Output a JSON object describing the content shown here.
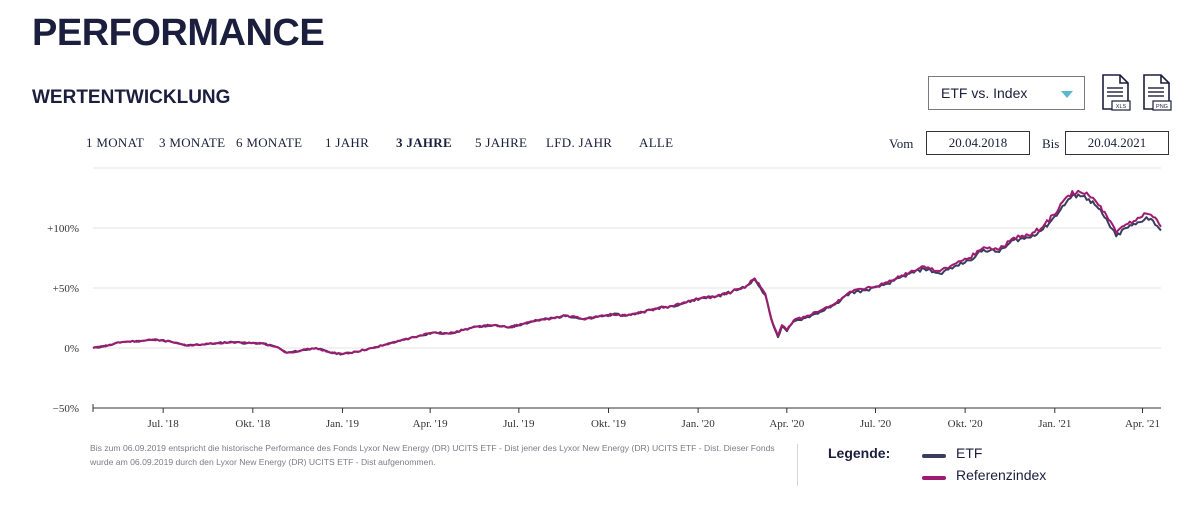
{
  "header": {
    "title": "PERFORMANCE",
    "subtitle": "WERTENTWICKLUNG"
  },
  "comparison_select": {
    "value": "ETF vs. Index"
  },
  "downloads": {
    "xls_label": "XLS",
    "png_label": "PNG"
  },
  "ranges": [
    {
      "label": "1 MONAT",
      "active": false
    },
    {
      "label": "3 MONATE",
      "active": false
    },
    {
      "label": "6 MONATE",
      "active": false
    },
    {
      "label": "1 JAHR",
      "active": false
    },
    {
      "label": "3 JAHRE",
      "active": true
    },
    {
      "label": "5 JAHRE",
      "active": false
    },
    {
      "label": "LFD. JAHR",
      "active": false
    },
    {
      "label": "ALLE",
      "active": false
    }
  ],
  "date_range": {
    "from_label": "Vom",
    "from": "20.04.2018",
    "to_label": "Bis",
    "to": "20.04.2021"
  },
  "chart_data": {
    "type": "line",
    "y_unit": "%",
    "ylim": [
      -50,
      150
    ],
    "y_ticks": [
      {
        "value": -50,
        "label": "−50%"
      },
      {
        "value": 0,
        "label": "0%"
      },
      {
        "value": 50,
        "label": "+50%"
      },
      {
        "value": 100,
        "label": "+100%"
      }
    ],
    "xlim": [
      "2018-04-20",
      "2021-04-20"
    ],
    "x_ticks": [
      {
        "date": "2018-07-01",
        "label": "Jul. '18"
      },
      {
        "date": "2018-10-01",
        "label": "Okt. '18"
      },
      {
        "date": "2019-01-01",
        "label": "Jan. '19"
      },
      {
        "date": "2019-04-01",
        "label": "Apr. '19"
      },
      {
        "date": "2019-07-01",
        "label": "Jul. '19"
      },
      {
        "date": "2019-10-01",
        "label": "Okt. '19"
      },
      {
        "date": "2020-01-01",
        "label": "Jan. '20"
      },
      {
        "date": "2020-04-01",
        "label": "Apr. '20"
      },
      {
        "date": "2020-07-01",
        "label": "Jul. '20"
      },
      {
        "date": "2020-10-01",
        "label": "Okt. '20"
      },
      {
        "date": "2021-01-01",
        "label": "Jan. '21"
      },
      {
        "date": "2021-04-01",
        "label": "Apr. '21"
      }
    ],
    "grid": "horizontal",
    "series": [
      {
        "name": "ETF",
        "color": "#3a3d5c",
        "points": [
          [
            "2018-04-20",
            0
          ],
          [
            "2018-05-05",
            2
          ],
          [
            "2018-05-20",
            5
          ],
          [
            "2018-06-10",
            6
          ],
          [
            "2018-06-25",
            7
          ],
          [
            "2018-07-10",
            5
          ],
          [
            "2018-07-25",
            2
          ],
          [
            "2018-08-10",
            3
          ],
          [
            "2018-08-25",
            4
          ],
          [
            "2018-09-10",
            5
          ],
          [
            "2018-09-25",
            4
          ],
          [
            "2018-10-10",
            4
          ],
          [
            "2018-10-25",
            1
          ],
          [
            "2018-11-05",
            -4
          ],
          [
            "2018-11-20",
            -2
          ],
          [
            "2018-12-05",
            0
          ],
          [
            "2018-12-20",
            -4
          ],
          [
            "2019-01-01",
            -5
          ],
          [
            "2019-01-15",
            -3
          ],
          [
            "2019-02-01",
            0
          ],
          [
            "2019-02-15",
            3
          ],
          [
            "2019-03-01",
            6
          ],
          [
            "2019-03-20",
            10
          ],
          [
            "2019-04-05",
            13
          ],
          [
            "2019-04-20",
            12
          ],
          [
            "2019-05-05",
            15
          ],
          [
            "2019-05-20",
            18
          ],
          [
            "2019-06-05",
            19
          ],
          [
            "2019-06-20",
            17
          ],
          [
            "2019-07-05",
            20
          ],
          [
            "2019-07-20",
            23
          ],
          [
            "2019-08-05",
            25
          ],
          [
            "2019-08-20",
            27
          ],
          [
            "2019-09-05",
            24
          ],
          [
            "2019-09-20",
            26
          ],
          [
            "2019-10-05",
            28
          ],
          [
            "2019-10-20",
            27
          ],
          [
            "2019-11-05",
            30
          ],
          [
            "2019-11-20",
            33
          ],
          [
            "2019-12-05",
            35
          ],
          [
            "2019-12-20",
            38
          ],
          [
            "2020-01-05",
            42
          ],
          [
            "2020-01-20",
            43
          ],
          [
            "2020-02-05",
            47
          ],
          [
            "2020-02-20",
            52
          ],
          [
            "2020-02-28",
            57
          ],
          [
            "2020-03-05",
            50
          ],
          [
            "2020-03-10",
            44
          ],
          [
            "2020-03-16",
            24
          ],
          [
            "2020-03-20",
            15
          ],
          [
            "2020-03-23",
            9
          ],
          [
            "2020-03-27",
            18
          ],
          [
            "2020-04-01",
            14
          ],
          [
            "2020-04-08",
            22
          ],
          [
            "2020-04-20",
            25
          ],
          [
            "2020-05-05",
            30
          ],
          [
            "2020-05-20",
            36
          ],
          [
            "2020-06-05",
            46
          ],
          [
            "2020-06-20",
            48
          ],
          [
            "2020-07-05",
            51
          ],
          [
            "2020-07-20",
            56
          ],
          [
            "2020-08-05",
            62
          ],
          [
            "2020-08-20",
            66
          ],
          [
            "2020-09-05",
            62
          ],
          [
            "2020-09-20",
            68
          ],
          [
            "2020-10-05",
            73
          ],
          [
            "2020-10-20",
            82
          ],
          [
            "2020-11-05",
            80
          ],
          [
            "2020-11-20",
            90
          ],
          [
            "2020-12-05",
            92
          ],
          [
            "2020-12-20",
            99
          ],
          [
            "2021-01-05",
            113
          ],
          [
            "2021-01-15",
            124
          ],
          [
            "2021-01-25",
            128
          ],
          [
            "2021-02-05",
            124
          ],
          [
            "2021-02-15",
            116
          ],
          [
            "2021-02-25",
            104
          ],
          [
            "2021-03-05",
            93
          ],
          [
            "2021-03-15",
            100
          ],
          [
            "2021-03-25",
            103
          ],
          [
            "2021-04-05",
            109
          ],
          [
            "2021-04-12",
            106
          ],
          [
            "2021-04-20",
            98
          ]
        ]
      },
      {
        "name": "Referenzindex",
        "color": "#9e1b72",
        "points": [
          [
            "2018-04-20",
            0
          ],
          [
            "2018-05-05",
            2
          ],
          [
            "2018-05-20",
            5
          ],
          [
            "2018-06-10",
            6
          ],
          [
            "2018-06-25",
            7
          ],
          [
            "2018-07-10",
            5
          ],
          [
            "2018-07-25",
            2
          ],
          [
            "2018-08-10",
            3
          ],
          [
            "2018-08-25",
            4
          ],
          [
            "2018-09-10",
            5
          ],
          [
            "2018-09-25",
            4
          ],
          [
            "2018-10-10",
            4
          ],
          [
            "2018-10-25",
            1
          ],
          [
            "2018-11-05",
            -4
          ],
          [
            "2018-11-20",
            -2
          ],
          [
            "2018-12-05",
            0
          ],
          [
            "2018-12-20",
            -4
          ],
          [
            "2019-01-01",
            -5
          ],
          [
            "2019-01-15",
            -3
          ],
          [
            "2019-02-01",
            0
          ],
          [
            "2019-02-15",
            3
          ],
          [
            "2019-03-01",
            6
          ],
          [
            "2019-03-20",
            10
          ],
          [
            "2019-04-05",
            13
          ],
          [
            "2019-04-20",
            12
          ],
          [
            "2019-05-05",
            15
          ],
          [
            "2019-05-20",
            18
          ],
          [
            "2019-06-05",
            19
          ],
          [
            "2019-06-20",
            17
          ],
          [
            "2019-07-05",
            20
          ],
          [
            "2019-07-20",
            23
          ],
          [
            "2019-08-05",
            25
          ],
          [
            "2019-08-20",
            27
          ],
          [
            "2019-09-05",
            24
          ],
          [
            "2019-09-20",
            26
          ],
          [
            "2019-10-05",
            28
          ],
          [
            "2019-10-20",
            27
          ],
          [
            "2019-11-05",
            30
          ],
          [
            "2019-11-20",
            33
          ],
          [
            "2019-12-05",
            35
          ],
          [
            "2019-12-20",
            38
          ],
          [
            "2020-01-05",
            42
          ],
          [
            "2020-01-20",
            43
          ],
          [
            "2020-02-05",
            47
          ],
          [
            "2020-02-20",
            52
          ],
          [
            "2020-02-28",
            58
          ],
          [
            "2020-03-05",
            51
          ],
          [
            "2020-03-10",
            45
          ],
          [
            "2020-03-16",
            25
          ],
          [
            "2020-03-20",
            16
          ],
          [
            "2020-03-23",
            10
          ],
          [
            "2020-03-27",
            19
          ],
          [
            "2020-04-01",
            15
          ],
          [
            "2020-04-08",
            23
          ],
          [
            "2020-04-20",
            26
          ],
          [
            "2020-05-05",
            31
          ],
          [
            "2020-05-20",
            37
          ],
          [
            "2020-06-05",
            47
          ],
          [
            "2020-06-20",
            49
          ],
          [
            "2020-07-05",
            52
          ],
          [
            "2020-07-20",
            57
          ],
          [
            "2020-08-05",
            63
          ],
          [
            "2020-08-20",
            68
          ],
          [
            "2020-09-05",
            64
          ],
          [
            "2020-09-20",
            70
          ],
          [
            "2020-10-05",
            75
          ],
          [
            "2020-10-20",
            84
          ],
          [
            "2020-11-05",
            82
          ],
          [
            "2020-11-20",
            92
          ],
          [
            "2020-12-05",
            94
          ],
          [
            "2020-12-20",
            101
          ],
          [
            "2021-01-05",
            116
          ],
          [
            "2021-01-15",
            127
          ],
          [
            "2021-01-25",
            131
          ],
          [
            "2021-02-05",
            127
          ],
          [
            "2021-02-15",
            119
          ],
          [
            "2021-02-25",
            107
          ],
          [
            "2021-03-05",
            96
          ],
          [
            "2021-03-15",
            103
          ],
          [
            "2021-03-25",
            106
          ],
          [
            "2021-04-05",
            112
          ],
          [
            "2021-04-12",
            109
          ],
          [
            "2021-04-20",
            101
          ]
        ]
      }
    ]
  },
  "disclaimer": "Bis zum 06.09.2019 entspricht die historische Performance des Fonds Lyxor New Energy (DR) UCITS ETF - Dist jener des Lyxor New Energy (DR) UCITS ETF - Dist. Dieser Fonds wurde am 06.09.2019 durch den Lyxor New Energy (DR) UCITS ETF - Dist aufgenommen.",
  "legend": {
    "title": "Legende:",
    "items": [
      {
        "label": "ETF",
        "color": "#3a3d5c"
      },
      {
        "label": "Referenzindex",
        "color": "#9e1b72"
      }
    ]
  }
}
